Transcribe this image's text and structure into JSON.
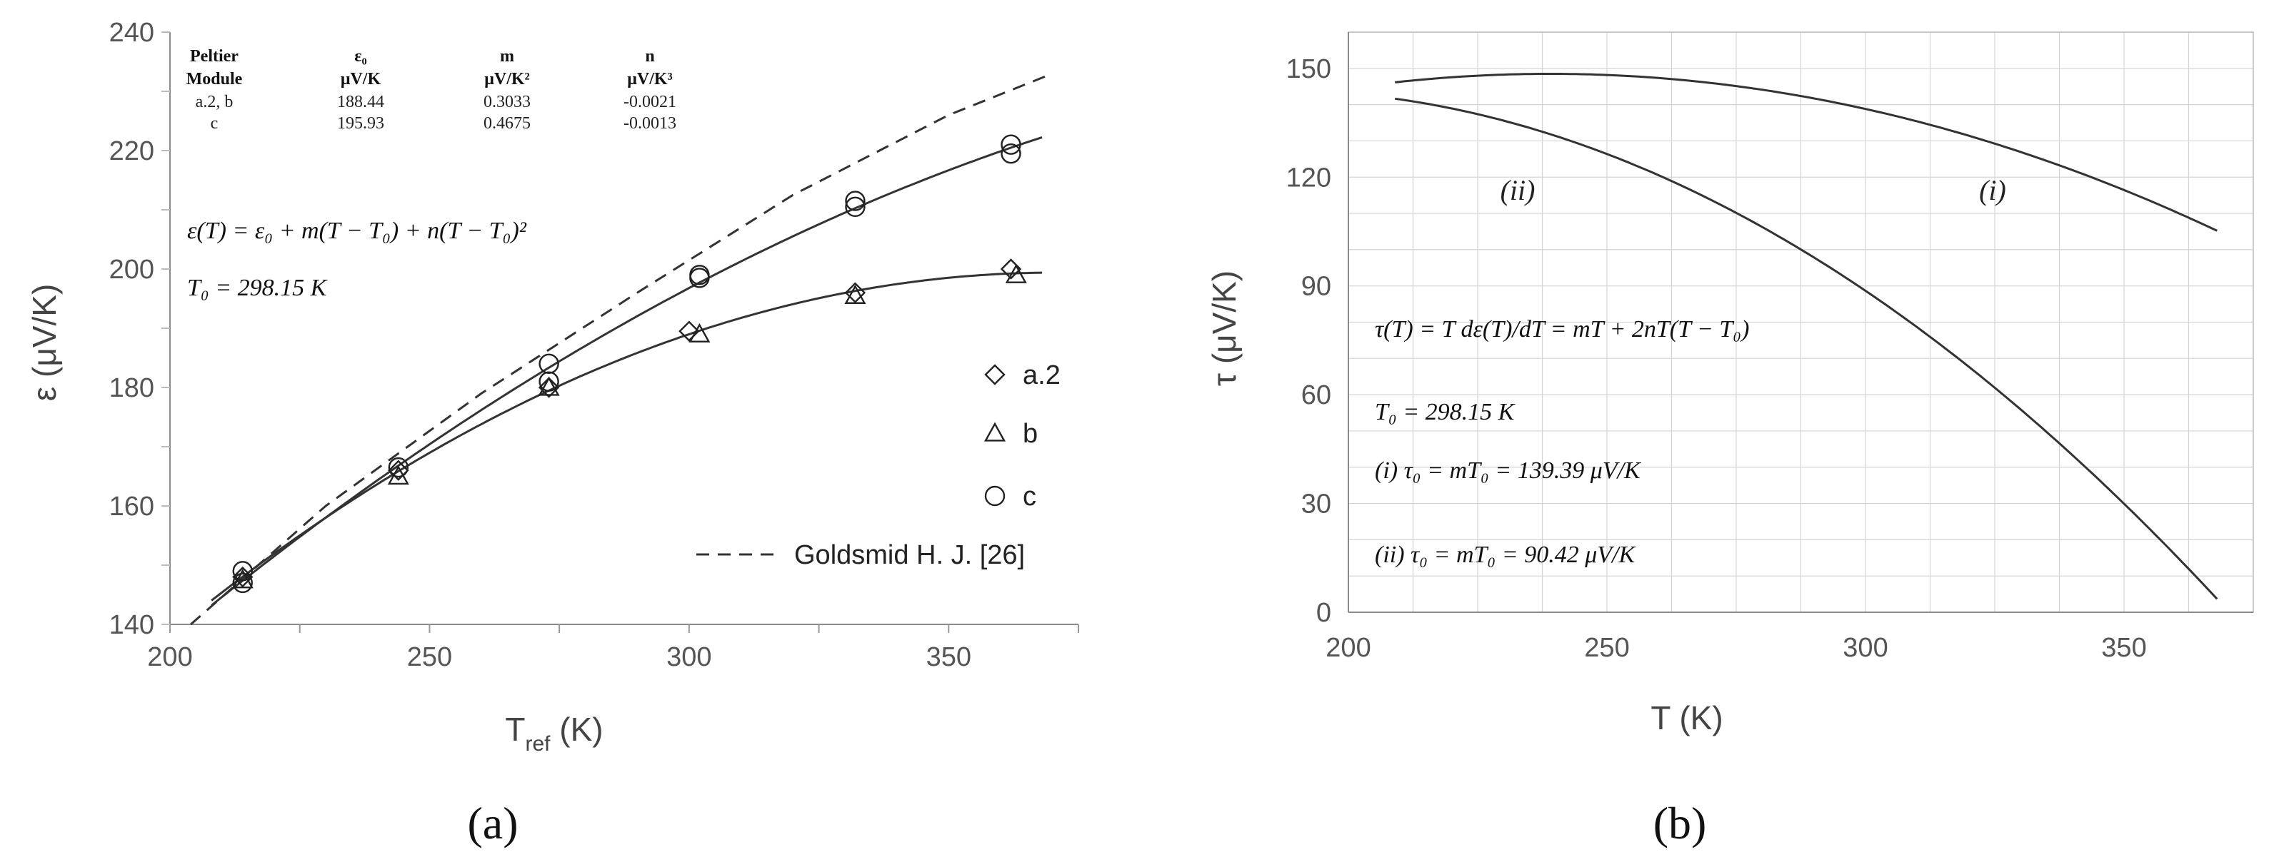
{
  "chart_data": [
    {
      "panel_label": "(a)",
      "type": "scatter",
      "xlabel": "T",
      "xlabel_sub": "ref",
      "xlabel_unit": " (K)",
      "ylabel": "ε (μV/K)",
      "xlim": [
        200,
        375
      ],
      "ylim": [
        140,
        240
      ],
      "x_ticks": [
        200,
        250,
        300,
        350
      ],
      "y_ticks": [
        140,
        160,
        180,
        200,
        220,
        240
      ],
      "grid": false,
      "table": {
        "headers": [
          [
            "Peltier",
            "Module"
          ],
          [
            "ε₀",
            "μV/K"
          ],
          [
            "m",
            "μV/K²"
          ],
          [
            "n",
            "μV/K³"
          ]
        ],
        "rows": [
          [
            "a.2, b",
            "188.44",
            "0.3033",
            "-0.0021"
          ],
          [
            "c",
            "195.93",
            "0.4675",
            "-0.0013"
          ]
        ]
      },
      "equations": [
        "ε(T) = ε₀ + m(T − T₀) + n(T − T₀)²",
        "T₀ = 298.15 K"
      ],
      "legend_position": "right",
      "series": [
        {
          "name": "a.2",
          "marker": "diamond",
          "x": [
            214,
            244,
            273,
            300,
            332,
            362
          ],
          "y": [
            148,
            166,
            180,
            189.5,
            196,
            200
          ]
        },
        {
          "name": "b",
          "marker": "triangle",
          "x": [
            214,
            244,
            273,
            302,
            332,
            363
          ],
          "y": [
            147.5,
            165,
            180,
            189,
            195.5,
            199
          ]
        },
        {
          "name": "c",
          "marker": "circle",
          "x": [
            214,
            214,
            244,
            273,
            273,
            302,
            302,
            332,
            332,
            362,
            362
          ],
          "y": [
            149,
            147,
            166.5,
            184,
            181,
            199,
            198.5,
            211.5,
            210.5,
            221,
            219.5
          ]
        },
        {
          "name": "Goldsmid H. J. [26]",
          "style": "dashed",
          "x": [
            204,
            230,
            260,
            290,
            320,
            350,
            370
          ],
          "y": [
            140,
            160,
            179,
            196,
            212.5,
            226,
            233
          ]
        }
      ],
      "fits": [
        {
          "for": "a.2, b",
          "eps0": 188.44,
          "m": 0.3033,
          "n": -0.0021,
          "x_range": [
            208,
            368
          ]
        },
        {
          "for": "c",
          "eps0": 195.93,
          "m": 0.4675,
          "n": -0.0013,
          "x_range": [
            208,
            368
          ]
        }
      ]
    },
    {
      "panel_label": "(b)",
      "type": "line",
      "xlabel": "T (K)",
      "ylabel": "τ (μV/K)",
      "xlim": [
        200,
        375
      ],
      "ylim": [
        0,
        160
      ],
      "x_ticks": [
        200,
        250,
        300,
        350
      ],
      "y_ticks": [
        0,
        30,
        60,
        90,
        120,
        150
      ],
      "grid": true,
      "equations": [
        "τ(T) = T dε(T)/dT = mT + 2nT(T − T₀)",
        "T₀ = 298.15 K",
        "(i)    τ₀ = mT₀ = 139.39 μV/K",
        "(ii)   τ₀ = mT₀ =   90.42 μV/K"
      ],
      "series": [
        {
          "name": "(i)",
          "m": 0.4675,
          "n": -0.0013,
          "x_range": [
            209,
            368
          ]
        },
        {
          "name": "(ii)",
          "m": 0.3033,
          "n": -0.0021,
          "x_range": [
            209,
            368
          ]
        }
      ]
    }
  ]
}
